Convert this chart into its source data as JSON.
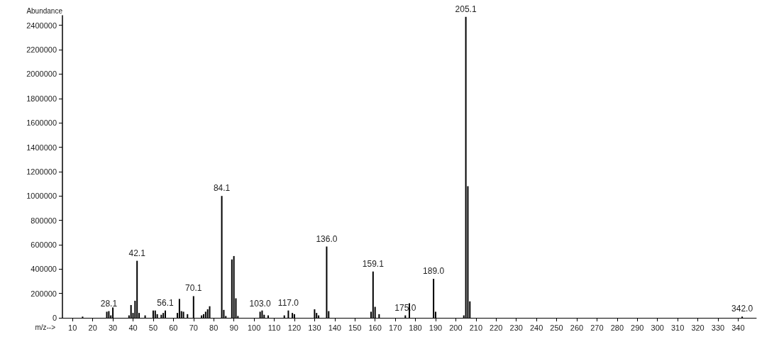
{
  "chart_data": {
    "type": "bar",
    "xlabel": "m/z-->",
    "ylabel": "Abundance",
    "x": [
      15,
      27,
      28,
      29,
      30,
      38,
      39,
      40,
      41,
      42,
      43,
      46,
      50,
      51,
      52,
      54,
      55,
      56,
      62,
      63,
      64,
      65,
      67,
      70,
      74,
      75,
      76,
      77,
      78,
      84,
      85,
      86,
      89,
      90,
      91,
      92,
      103,
      104,
      105,
      107,
      115,
      117,
      119,
      120,
      130,
      131,
      132,
      136,
      137,
      158,
      159,
      160,
      162,
      175,
      177,
      189,
      190,
      204,
      205,
      206,
      207,
      342
    ],
    "values": [
      10000,
      50000,
      55000,
      20000,
      85000,
      20000,
      105000,
      40000,
      140000,
      468000,
      40000,
      20000,
      60000,
      60000,
      30000,
      25000,
      40000,
      60000,
      40000,
      155000,
      55000,
      50000,
      30000,
      178000,
      20000,
      30000,
      50000,
      70000,
      95000,
      1000000,
      65000,
      15000,
      479000,
      507000,
      160000,
      15000,
      50000,
      60000,
      25000,
      20000,
      20000,
      60000,
      40000,
      30000,
      70000,
      40000,
      20000,
      585000,
      55000,
      50000,
      380000,
      90000,
      30000,
      20000,
      120000,
      320000,
      50000,
      20000,
      2470000,
      1080000,
      135000,
      10000
    ],
    "color": "#000000",
    "xlim": [
      5,
      349
    ],
    "xticks": [
      10,
      20,
      30,
      40,
      50,
      60,
      70,
      80,
      90,
      100,
      110,
      120,
      130,
      140,
      150,
      160,
      170,
      180,
      190,
      200,
      210,
      220,
      230,
      240,
      250,
      260,
      270,
      280,
      290,
      300,
      310,
      320,
      330,
      340
    ],
    "ylim": [
      0,
      2480000
    ],
    "yticks": [
      0,
      200000,
      400000,
      600000,
      800000,
      1000000,
      1200000,
      1400000,
      1600000,
      1800000,
      2000000,
      2200000,
      2400000
    ],
    "grid": false,
    "annotations": [
      {
        "text": "28.1",
        "x": 28,
        "y": 55000
      },
      {
        "text": "42.1",
        "x": 42,
        "y": 468000
      },
      {
        "text": "56.1",
        "x": 56,
        "y": 60000
      },
      {
        "text": "70.1",
        "x": 70,
        "y": 178000
      },
      {
        "text": "84.1",
        "x": 84,
        "y": 1000000
      },
      {
        "text": "103.0",
        "x": 103,
        "y": 50000
      },
      {
        "text": "117.0",
        "x": 117,
        "y": 60000
      },
      {
        "text": "136.0",
        "x": 136,
        "y": 585000
      },
      {
        "text": "159.1",
        "x": 159,
        "y": 380000
      },
      {
        "text": "175.0",
        "x": 175,
        "y": 20000
      },
      {
        "text": "189.0",
        "x": 189,
        "y": 320000
      },
      {
        "text": "205.1",
        "x": 205,
        "y": 2470000
      },
      {
        "text": "342.0",
        "x": 342,
        "y": 10000
      }
    ]
  }
}
